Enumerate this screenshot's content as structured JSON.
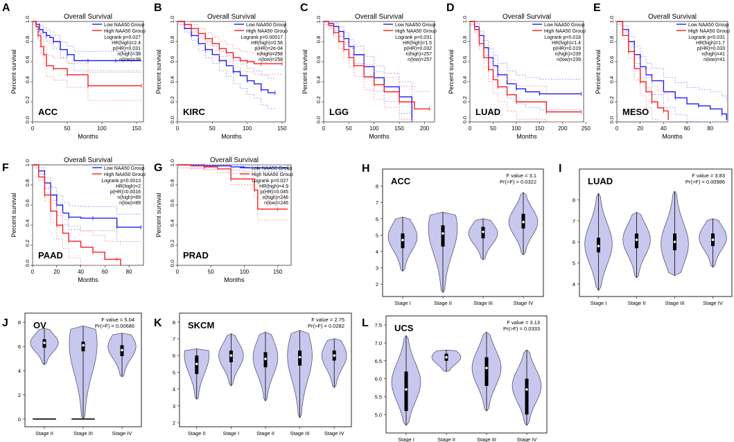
{
  "figure": {
    "colors": {
      "low": "#1a1aff",
      "high": "#ff1a1a",
      "low_ci": "#8a8aff",
      "high_ci": "#ff8a8a",
      "violin_fill": "#c8c8ee",
      "violin_stroke": "#555577",
      "axis": "#333333"
    }
  },
  "chart_data": [
    {
      "panel": "A",
      "type": "line",
      "cancer": "ACC",
      "title": "Overall Survival",
      "xlabel": "Months",
      "ylabel": "Percent survival",
      "xlim": [
        0,
        160
      ],
      "xticks": [
        0,
        50,
        100,
        150
      ],
      "ylim": [
        0,
        1
      ],
      "yticks": [
        "0.0",
        "0.2",
        "0.4",
        "0.6",
        "0.8",
        "1.0"
      ],
      "legend": [
        "Low NAA50 Group",
        "High NAA50 Group"
      ],
      "stats": [
        "Logrank p=0.027",
        "HR(high)=2.4",
        "p(HR)=0.031",
        "n(high)=38",
        "n(low)=38"
      ],
      "series": [
        {
          "name": "Low NAA50 Group",
          "x": [
            0,
            5,
            10,
            15,
            20,
            25,
            30,
            40,
            50,
            60,
            80,
            100,
            120,
            157
          ],
          "y": [
            1.0,
            0.97,
            0.92,
            0.89,
            0.86,
            0.84,
            0.8,
            0.72,
            0.67,
            0.61,
            0.61,
            0.61,
            0.61,
            0.61
          ]
        },
        {
          "name": "High NAA50 Group",
          "x": [
            0,
            5,
            8,
            12,
            16,
            20,
            30,
            40,
            50,
            60,
            80,
            100,
            157
          ],
          "y": [
            1.0,
            0.95,
            0.86,
            0.75,
            0.67,
            0.56,
            0.53,
            0.53,
            0.47,
            0.47,
            0.36,
            0.36,
            0.36
          ]
        }
      ]
    },
    {
      "panel": "B",
      "type": "line",
      "cancer": "KIRC",
      "title": "Overall Survival",
      "xlabel": "Months",
      "ylabel": "Percent survival",
      "xlim": [
        0,
        155
      ],
      "xticks": [
        0,
        50,
        100,
        150
      ],
      "ylim": [
        0,
        1
      ],
      "yticks": [
        "0.0",
        "0.2",
        "0.4",
        "0.6",
        "0.8",
        "1.0"
      ],
      "legend": [
        "Low NAA50 Group",
        "High NAA50 Group"
      ],
      "stats": [
        "Logrank p=0.00017",
        "HR(high)=0.56",
        "p(HR)=2e-04",
        "n(high)=258",
        "n(low)=258"
      ],
      "series": [
        {
          "name": "Low NAA50 Group",
          "x": [
            0,
            10,
            20,
            30,
            40,
            50,
            60,
            70,
            80,
            90,
            100,
            110,
            120,
            130,
            140
          ],
          "y": [
            1.0,
            0.93,
            0.86,
            0.78,
            0.72,
            0.67,
            0.61,
            0.56,
            0.5,
            0.46,
            0.41,
            0.38,
            0.32,
            0.29,
            0.29
          ]
        },
        {
          "name": "High NAA50 Group",
          "x": [
            0,
            10,
            20,
            30,
            40,
            50,
            60,
            70,
            80,
            90,
            100,
            110,
            120,
            130,
            150
          ],
          "y": [
            1.0,
            0.97,
            0.93,
            0.88,
            0.83,
            0.78,
            0.73,
            0.69,
            0.64,
            0.61,
            0.6,
            0.58,
            0.58,
            0.58,
            0.58
          ]
        }
      ]
    },
    {
      "panel": "C",
      "type": "line",
      "cancer": "LGG",
      "title": "Overall Survival",
      "xlabel": "Months",
      "ylabel": "Percent survival",
      "xlim": [
        0,
        220
      ],
      "xticks": [
        0,
        50,
        100,
        150,
        200
      ],
      "ylim": [
        0,
        1
      ],
      "yticks": [
        "0.0",
        "0.2",
        "0.4",
        "0.6",
        "0.8",
        "1.0"
      ],
      "legend": [
        "Low NAA50 Group",
        "High NAA50 Group"
      ],
      "stats": [
        "Logrank p=0.031",
        "HR(high)=1.5",
        "p(HR)=0.032",
        "n(high)=257",
        "n(low)=257"
      ],
      "series": [
        {
          "name": "Low NAA50 Group",
          "x": [
            0,
            10,
            20,
            30,
            40,
            50,
            60,
            80,
            100,
            120,
            150,
            170,
            175
          ],
          "y": [
            1.0,
            0.98,
            0.95,
            0.9,
            0.83,
            0.75,
            0.67,
            0.55,
            0.44,
            0.35,
            0.25,
            0.25,
            0.02
          ]
        },
        {
          "name": "High NAA50 Group",
          "x": [
            0,
            10,
            20,
            30,
            40,
            50,
            60,
            80,
            100,
            120,
            150,
            180,
            210
          ],
          "y": [
            1.0,
            0.96,
            0.89,
            0.8,
            0.72,
            0.64,
            0.56,
            0.45,
            0.37,
            0.3,
            0.2,
            0.13,
            0.13
          ]
        }
      ]
    },
    {
      "panel": "D",
      "type": "line",
      "cancer": "LUAD",
      "title": "Overall Survival",
      "xlabel": "Months",
      "ylabel": "Percent survival",
      "xlim": [
        0,
        245
      ],
      "xticks": [
        0,
        50,
        100,
        150,
        200,
        250
      ],
      "ylim": [
        0,
        1
      ],
      "yticks": [
        "0.0",
        "0.2",
        "0.4",
        "0.6",
        "0.8",
        "1.0"
      ],
      "legend": [
        "Low NAA50 Group",
        "High NAA50 Group"
      ],
      "stats": [
        "Logrank p=0.018",
        "HR(high)=1.4",
        "p(HR)=0.019",
        "n(high)=239",
        "n(low)=239"
      ],
      "series": [
        {
          "name": "Low NAA50 Group",
          "x": [
            0,
            10,
            20,
            30,
            40,
            50,
            60,
            80,
            100,
            120,
            150,
            200,
            240
          ],
          "y": [
            1.0,
            0.95,
            0.86,
            0.74,
            0.64,
            0.56,
            0.47,
            0.38,
            0.33,
            0.3,
            0.28,
            0.28,
            0.28
          ]
        },
        {
          "name": "High NAA50 Group",
          "x": [
            0,
            10,
            20,
            30,
            40,
            50,
            60,
            80,
            100,
            120,
            165,
            200,
            240
          ],
          "y": [
            1.0,
            0.92,
            0.78,
            0.64,
            0.52,
            0.42,
            0.35,
            0.27,
            0.2,
            0.2,
            0.1,
            0.1,
            0.1
          ]
        }
      ]
    },
    {
      "panel": "E",
      "type": "line",
      "cancer": "MESO",
      "title": "Overall Survival",
      "xlabel": "Months",
      "ylabel": "Percent survival",
      "xlim": [
        0,
        95
      ],
      "xticks": [
        0,
        20,
        40,
        60,
        80
      ],
      "ylim": [
        0,
        1
      ],
      "yticks": [
        "0.0",
        "0.2",
        "0.4",
        "0.6",
        "0.8",
        "1.0"
      ],
      "legend": [
        "Low NAA50 Group",
        "High NAA50 Group"
      ],
      "stats": [
        "Logrank p=0.031",
        "HR(high)=1.7",
        "p(HR)=0.033",
        "n(high)=41",
        "n(low)=41"
      ],
      "series": [
        {
          "name": "Low NAA50 Group",
          "x": [
            0,
            5,
            10,
            15,
            20,
            25,
            30,
            40,
            50,
            60,
            70,
            80,
            90,
            94
          ],
          "y": [
            1.0,
            0.92,
            0.8,
            0.67,
            0.55,
            0.47,
            0.41,
            0.3,
            0.24,
            0.18,
            0.16,
            0.13,
            0.08,
            0.02
          ]
        },
        {
          "name": "High NAA50 Group",
          "x": [
            0,
            5,
            10,
            15,
            20,
            25,
            30,
            35,
            40,
            44
          ],
          "y": [
            1.0,
            0.86,
            0.7,
            0.53,
            0.4,
            0.3,
            0.2,
            0.14,
            0.11,
            0.02
          ]
        }
      ]
    },
    {
      "panel": "F",
      "type": "line",
      "cancer": "PAAD",
      "title": "Overall Survival",
      "xlabel": "Months",
      "ylabel": "Percent survival",
      "xlim": [
        0,
        92
      ],
      "xticks": [
        0,
        20,
        40,
        60,
        80
      ],
      "ylim": [
        0,
        1
      ],
      "yticks": [
        "0.0",
        "0.2",
        "0.4",
        "0.6",
        "0.8",
        "1.0"
      ],
      "legend": [
        "Low NAA50 Group",
        "High NAA50 Group"
      ],
      "stats": [
        "Logrank p=0.0013",
        "HR(high)=2",
        "p(HR)=0.0016",
        "n(high)=89",
        "n(low)=89"
      ],
      "series": [
        {
          "name": "Low NAA50 Group",
          "x": [
            0,
            5,
            10,
            15,
            20,
            25,
            30,
            40,
            50,
            60,
            70,
            80,
            90
          ],
          "y": [
            1.0,
            0.94,
            0.82,
            0.7,
            0.6,
            0.52,
            0.48,
            0.47,
            0.47,
            0.47,
            0.38,
            0.38,
            0.38
          ]
        },
        {
          "name": "High NAA50 Group",
          "x": [
            0,
            5,
            10,
            15,
            20,
            25,
            30,
            40,
            50,
            60,
            70,
            73
          ],
          "y": [
            1.0,
            0.88,
            0.7,
            0.54,
            0.4,
            0.32,
            0.24,
            0.18,
            0.13,
            0.06,
            0.06,
            0.0
          ]
        }
      ]
    },
    {
      "panel": "G",
      "type": "line",
      "cancer": "PRAD",
      "title": "Overall Survival",
      "xlabel": "Months",
      "ylabel": "Percent survival",
      "xlim": [
        0,
        170
      ],
      "xticks": [
        0,
        50,
        100,
        150
      ],
      "ylim": [
        0,
        1
      ],
      "yticks": [
        "0.0",
        "0.2",
        "0.4",
        "0.6",
        "0.8",
        "1.0"
      ],
      "legend": [
        "Low NAA50 Group",
        "High NAA50 Group"
      ],
      "stats": [
        "Logrank p=0.027",
        "HR(high)=4.9",
        "p(HR)=0.045",
        "n(high)=246",
        "n(low)=246"
      ],
      "series": [
        {
          "name": "Low NAA50 Group",
          "x": [
            0,
            20,
            40,
            60,
            80,
            100,
            120,
            150,
            165
          ],
          "y": [
            1.0,
            1.0,
            0.99,
            0.99,
            0.98,
            0.97,
            0.97,
            0.97,
            0.97
          ]
        },
        {
          "name": "High NAA50 Group",
          "x": [
            0,
            20,
            40,
            60,
            80,
            100,
            115,
            120,
            150,
            165
          ],
          "y": [
            1.0,
            0.99,
            0.98,
            0.96,
            0.86,
            0.86,
            0.75,
            0.56,
            0.56,
            0.56
          ]
        }
      ]
    },
    {
      "panel": "H",
      "type": "violin",
      "cancer": "ACC",
      "fstat": "F value = 3.1",
      "pval": "Pr(>F) = 0.0322",
      "ylim": [
        1.5,
        8.7
      ],
      "yticks": [
        2,
        3,
        4,
        5,
        6,
        7,
        8
      ],
      "groups": [
        {
          "label": "Stage I",
          "min": 2.8,
          "max": 6.1,
          "q1": 4.2,
          "median": 4.7,
          "q3": 5.1,
          "widest": 4.9
        },
        {
          "label": "Stage II",
          "min": 1.5,
          "max": 6.4,
          "q1": 4.3,
          "median": 5.1,
          "q3": 5.6,
          "widest": 5.4
        },
        {
          "label": "Stage III",
          "min": 3.5,
          "max": 6.0,
          "q1": 4.8,
          "median": 5.2,
          "q3": 5.5,
          "widest": 5.1
        },
        {
          "label": "Stage IV",
          "min": 3.8,
          "max": 7.6,
          "q1": 5.4,
          "median": 5.8,
          "q3": 6.3,
          "widest": 5.8
        }
      ]
    },
    {
      "panel": "I",
      "type": "violin",
      "cancer": "LUAD",
      "fstat": "F value = 3.83",
      "pval": "Pr(>F) = 0.00986",
      "ylim": [
        3.6,
        9.2
      ],
      "yticks": [
        4,
        5,
        6,
        7,
        8
      ],
      "groups": [
        {
          "label": "Stage I",
          "min": 3.7,
          "max": 8.3,
          "q1": 5.5,
          "median": 5.8,
          "q3": 6.2,
          "widest": 5.9
        },
        {
          "label": "Stage II",
          "min": 4.3,
          "max": 7.4,
          "q1": 5.7,
          "median": 6.1,
          "q3": 6.4,
          "widest": 6.1
        },
        {
          "label": "Stage III",
          "min": 4.4,
          "max": 8.4,
          "q1": 5.6,
          "median": 6.0,
          "q3": 6.4,
          "widest": 5.9
        },
        {
          "label": "Stage IV",
          "min": 4.8,
          "max": 7.1,
          "q1": 5.8,
          "median": 6.1,
          "q3": 6.4,
          "widest": 6.2
        }
      ]
    },
    {
      "panel": "J",
      "type": "violin",
      "cancer": "OV",
      "fstat": "F value = 5.04",
      "pval": "Pr(>F) = 0.00686",
      "ylim": [
        -0.3,
        8.3
      ],
      "yticks": [
        0,
        2,
        4,
        6,
        8
      ],
      "groups": [
        {
          "label": "Stage II",
          "min": 4.5,
          "max": 7.5,
          "q1": 5.9,
          "median": 6.3,
          "q3": 6.6,
          "widest": 6.3
        },
        {
          "label": "Stage III",
          "min": 0.0,
          "max": 7.7,
          "q1": 5.6,
          "median": 6.1,
          "q3": 6.4,
          "widest": 6.2
        },
        {
          "label": "Stage IV",
          "min": 3.5,
          "max": 7.1,
          "q1": 5.2,
          "median": 5.7,
          "q3": 6.1,
          "widest": 6.0
        }
      ]
    },
    {
      "panel": "K",
      "type": "violin",
      "cancer": "SKCM",
      "fstat": "F value = 2.75",
      "pval": "Pr(>F) = 0.0282",
      "ylim": [
        2.0,
        8.2
      ],
      "yticks": [
        2,
        3,
        4,
        5,
        6,
        7,
        8
      ],
      "groups": [
        {
          "label": "Stage 0",
          "min": 3.4,
          "max": 6.4,
          "q1": 4.9,
          "median": 5.5,
          "q3": 6.0,
          "widest": 6.0
        },
        {
          "label": "Stage I",
          "min": 4.2,
          "max": 7.3,
          "q1": 5.6,
          "median": 6.0,
          "q3": 6.3,
          "widest": 6.0
        },
        {
          "label": "Stage II",
          "min": 3.3,
          "max": 7.4,
          "q1": 5.3,
          "median": 5.8,
          "q3": 6.2,
          "widest": 5.9
        },
        {
          "label": "Stage III",
          "min": 2.3,
          "max": 7.5,
          "q1": 5.4,
          "median": 5.9,
          "q3": 6.3,
          "widest": 6.0
        },
        {
          "label": "Stage IV",
          "min": 4.1,
          "max": 7.0,
          "q1": 5.7,
          "median": 6.0,
          "q3": 6.3,
          "widest": 6.0
        }
      ]
    },
    {
      "panel": "L",
      "type": "violin",
      "cancer": "UCS",
      "fstat": "F value = 3.13",
      "pval": "Pr(>F) = 0.0333",
      "ylim": [
        4.6,
        7.6
      ],
      "yticks": [
        "5.0",
        "5.5",
        "6.0",
        "6.5",
        "7.0",
        "7.5"
      ],
      "groups": [
        {
          "label": "Stage I",
          "min": 4.7,
          "max": 7.2,
          "q1": 5.1,
          "median": 5.7,
          "q3": 6.2,
          "widest": 5.9
        },
        {
          "label": "Stage II",
          "min": 6.2,
          "max": 6.8,
          "q1": 6.5,
          "median": 6.6,
          "q3": 6.7,
          "widest": 6.6
        },
        {
          "label": "Stage III",
          "min": 5.1,
          "max": 7.3,
          "q1": 5.8,
          "median": 6.3,
          "q3": 6.6,
          "widest": 6.3
        },
        {
          "label": "Stage IV",
          "min": 4.7,
          "max": 6.8,
          "q1": 5.0,
          "median": 5.7,
          "q3": 6.0,
          "widest": 5.8
        }
      ]
    }
  ]
}
